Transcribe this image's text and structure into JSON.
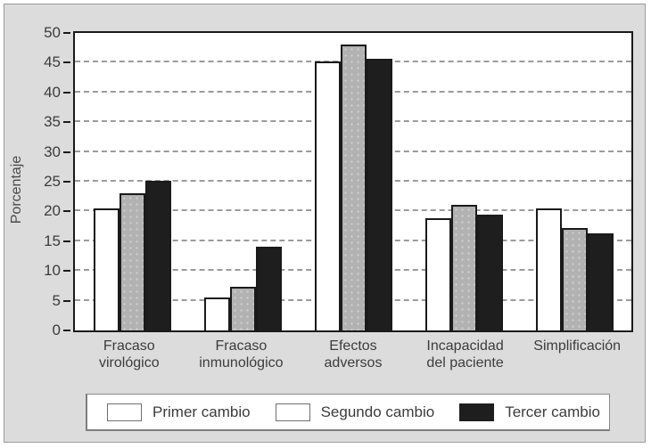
{
  "colors": {
    "panel_background": "#dcdcdc",
    "panel_border": "#9a9a9a",
    "plot_background": "#ffffff",
    "axis": "#1a1a1a",
    "gridline": "#9b9b9b",
    "text": "#3c3c3c",
    "series_fills": [
      "#ffffff",
      "#b2b2b2",
      "#1e1e1e"
    ]
  },
  "chart_data": {
    "type": "bar",
    "title": "",
    "xlabel": "",
    "ylabel": "Porcentaje",
    "ylim": [
      0,
      50
    ],
    "yticks": [
      0,
      5,
      10,
      15,
      20,
      25,
      30,
      35,
      40,
      45,
      50
    ],
    "grid": "horizontal dashed gridlines at every 5 units, solid plot border at 50",
    "legend_position": "bottom box, horizontal",
    "categories": [
      "Fracaso virológico",
      "Fracaso inmunológico",
      "Efectos adversos",
      "Incapacidad del paciente",
      "Simplificación"
    ],
    "category_label_lines": [
      [
        "Fracaso",
        "virológico"
      ],
      [
        "Fracaso",
        "inmunológico"
      ],
      [
        "Efectos",
        "adversos"
      ],
      [
        "Incapacidad",
        "del paciente"
      ],
      [
        "Simplificación"
      ]
    ],
    "series": [
      {
        "name": "Primer cambio",
        "fill": "#ffffff",
        "speckled": false,
        "values": [
          20.5,
          5.6,
          45.2,
          18.8,
          20.5
        ]
      },
      {
        "name": "Segundo cambio",
        "fill": "#b2b2b2",
        "speckled": true,
        "values": [
          23.1,
          7.3,
          48.0,
          21.1,
          17.2
        ]
      },
      {
        "name": "Tercer cambio",
        "fill": "#1e1e1e",
        "speckled": false,
        "values": [
          25.2,
          14.0,
          45.7,
          19.5,
          16.3
        ]
      }
    ]
  }
}
